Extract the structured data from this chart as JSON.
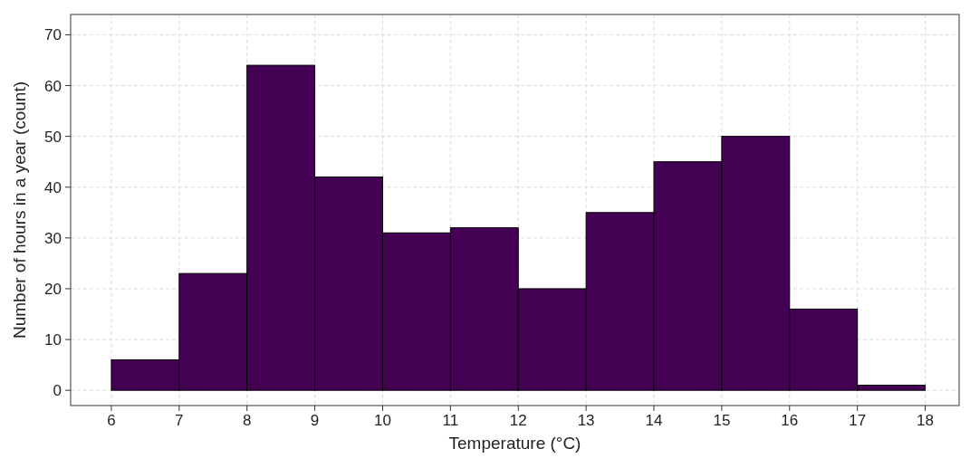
{
  "chart_data": {
    "type": "histogram",
    "xlabel": "Temperature (°C)",
    "ylabel": "Number of hours in a year (count)",
    "bins": [
      6,
      7,
      8,
      9,
      10,
      11,
      12,
      13,
      14,
      15,
      16,
      17,
      18
    ],
    "values": [
      6,
      23,
      64,
      42,
      31,
      32,
      20,
      35,
      45,
      50,
      16,
      1
    ],
    "color": "#440154",
    "xlim": [
      5.4,
      18.5
    ],
    "xticks": [
      6,
      7,
      8,
      9,
      10,
      11,
      12,
      13,
      14,
      15,
      16,
      17,
      18
    ],
    "ylim": [
      -3,
      74
    ],
    "yticks": [
      0,
      10,
      20,
      30,
      40,
      50,
      60,
      70
    ],
    "grid": true
  }
}
